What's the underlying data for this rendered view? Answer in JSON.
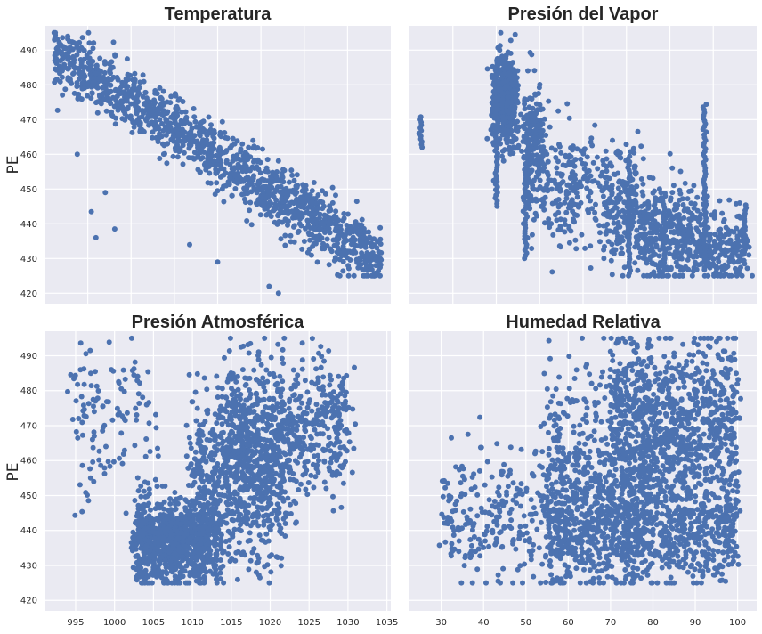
{
  "colors": {
    "axes_bg": "#EAEAF2",
    "grid": "#FFFFFF",
    "points": "#4C72B0",
    "text": "#262626"
  },
  "chart_data": [
    {
      "type": "scatter",
      "title": "Temperatura",
      "ylabel": "PE",
      "ylim": [
        417,
        497
      ],
      "xlim": [
        1,
        38
      ],
      "x_ticks": [],
      "y_ticks": [
        420,
        430,
        440,
        450,
        460,
        470,
        480,
        490
      ],
      "grid": true,
      "shape": {
        "kind": "linear_band",
        "x": [
          2,
          37
        ],
        "y_center": [
          489,
          429
        ],
        "band": 4.5,
        "n": 1400,
        "outliers": [
          [
            4.5,
            460
          ],
          [
            6,
            443.5
          ],
          [
            6.5,
            436
          ],
          [
            7.5,
            449
          ],
          [
            8.5,
            438.5
          ],
          [
            16.5,
            434
          ],
          [
            19.5,
            429
          ],
          [
            25,
            422
          ],
          [
            26,
            420
          ]
        ]
      }
    },
    {
      "type": "scatter",
      "title": "Presión del Vapor",
      "ylabel": "",
      "ylim": [
        417,
        497
      ],
      "xlim": [
        24,
        84
      ],
      "x_ticks": [],
      "y_ticks": [
        420,
        430,
        440,
        450,
        460,
        470,
        480,
        490
      ],
      "grid": true,
      "shape": {
        "kind": "clusters",
        "clusters": [
          [
            39,
            42,
            475,
            6,
            500
          ],
          [
            44,
            47,
            463,
            10,
            250
          ],
          [
            48,
            56,
            450,
            9,
            180
          ],
          [
            57,
            64,
            445,
            9,
            220
          ],
          [
            64,
            74,
            437,
            7,
            350
          ],
          [
            74,
            82,
            433,
            5,
            200
          ]
        ],
        "columns": [
          [
            26,
            462,
            471
          ],
          [
            39,
            445,
            487
          ],
          [
            44,
            430,
            458
          ],
          [
            62,
            425,
            460
          ],
          [
            68,
            428,
            449
          ],
          [
            75,
            428,
            475
          ],
          [
            82,
            431,
            446
          ]
        ]
      }
    },
    {
      "type": "scatter",
      "title": "Presión Atmosférica",
      "ylabel": "PE",
      "ylim": [
        417,
        497
      ],
      "xlim": [
        991,
        1035.5
      ],
      "x_ticks": [
        995,
        1000,
        1005,
        1010,
        1015,
        1020,
        1025,
        1030,
        1035
      ],
      "y_ticks": [
        420,
        430,
        440,
        450,
        460,
        470,
        480,
        490
      ],
      "grid": true,
      "shape": {
        "kind": "clusters",
        "clusters": [
          [
            1003,
            1013,
            437,
            6,
            900
          ],
          [
            1010,
            1022,
            455,
            12,
            700
          ],
          [
            1014,
            1030,
            470,
            10,
            600
          ],
          [
            995,
            1005,
            470,
            12,
            120
          ]
        ],
        "floor": 425,
        "ceil": 495
      }
    },
    {
      "type": "scatter",
      "title": "Humedad Relativa",
      "ylabel": "",
      "ylim": [
        417,
        497
      ],
      "xlim": [
        22.5,
        104.5
      ],
      "x_ticks": [
        30,
        40,
        50,
        60,
        70,
        80,
        90,
        100
      ],
      "y_ticks": [
        420,
        430,
        440,
        450,
        460,
        470,
        480,
        490
      ],
      "grid": true,
      "shape": {
        "kind": "clusters",
        "clusters": [
          [
            55,
            100,
            440,
            8,
            900
          ],
          [
            70,
            100,
            470,
            12,
            900
          ],
          [
            30,
            60,
            445,
            10,
            300
          ],
          [
            55,
            80,
            460,
            15,
            400
          ]
        ],
        "floor": 425,
        "ceil": 495
      }
    }
  ]
}
